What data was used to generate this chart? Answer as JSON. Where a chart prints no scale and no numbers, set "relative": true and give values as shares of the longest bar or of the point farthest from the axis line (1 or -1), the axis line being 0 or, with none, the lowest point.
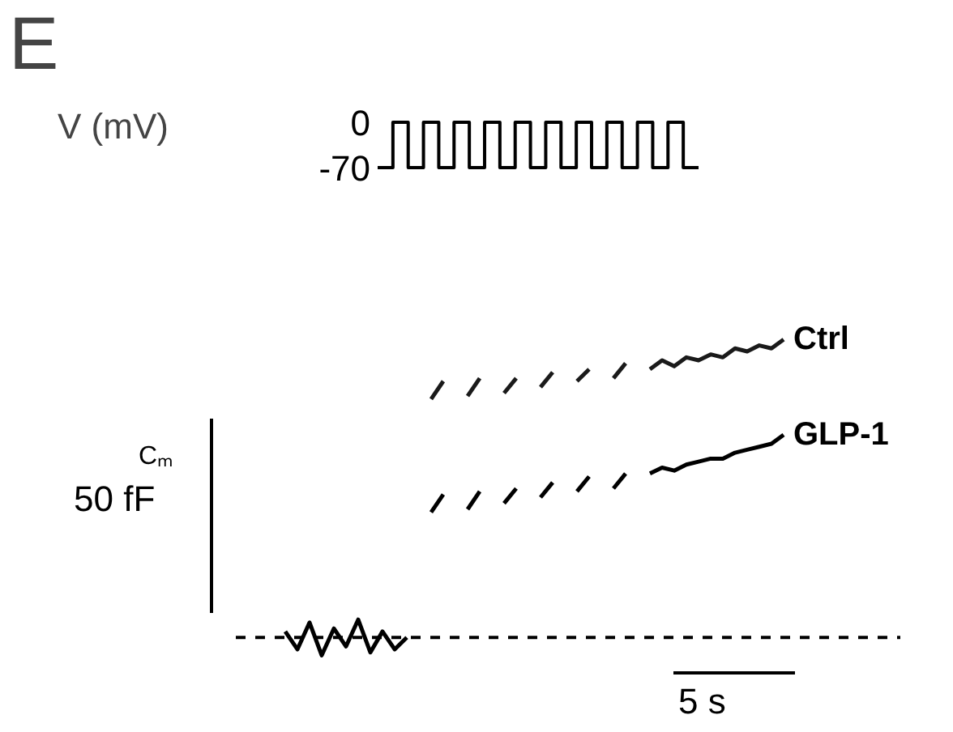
{
  "chart_data": [
    {
      "type": "step",
      "title": "E",
      "ylabel": "V (mV)",
      "ylim": [
        -137.5,
        187.5
      ],
      "yticks": [
        0,
        -70
      ],
      "tick_labels": "y",
      "categories": [
        null,
        null,
        null,
        null,
        null,
        null,
        null,
        null,
        null,
        null,
        null,
        null,
        null,
        null,
        null,
        null,
        null,
        null,
        null,
        null,
        null,
        null
      ],
      "values": [
        -70,
        0,
        -70,
        0,
        -70,
        0,
        -70,
        0,
        -70,
        0,
        -70,
        0,
        -70,
        0,
        -70,
        0,
        -70,
        0,
        -70,
        0,
        -70,
        -70
      ],
      "color": "#000000"
    },
    {
      "type": "line",
      "relative": true,
      "annotations": [
        "Cₘ",
        "50 fF",
        "5 s"
      ],
      "ref_lines": [
        {
          "axis": "y",
          "value": 0,
          "line_style": "dashed",
          "color": "#000000"
        }
      ],
      "categories": [
        null,
        null,
        null,
        null,
        null,
        null,
        null,
        null,
        null,
        null,
        null,
        null,
        null,
        null,
        null,
        null,
        null,
        null,
        null,
        null,
        null,
        null,
        null,
        null,
        null,
        null,
        null,
        null,
        null,
        null,
        null,
        null,
        null,
        null,
        null,
        null,
        null,
        null,
        null,
        null,
        null,
        null
      ],
      "series": [
        {
          "color": "#000000",
          "values": [
            0.02,
            -0.04,
            0.05,
            -0.06,
            0.03,
            -0.03,
            0.06,
            -0.05,
            0.02,
            -0.04,
            0.0,
            null,
            null,
            null,
            null,
            null,
            null,
            null,
            null,
            null,
            null,
            null,
            null,
            null,
            null,
            null,
            null,
            null,
            null,
            null,
            null,
            null,
            null,
            null,
            null,
            null,
            null,
            null,
            null,
            null,
            null,
            null
          ]
        },
        {
          "name": "Ctrl",
          "color": "#1a1a1a",
          "values": [
            null,
            null,
            null,
            null,
            null,
            null,
            null,
            null,
            null,
            null,
            null,
            null,
            0.8,
            0.86,
            null,
            0.81,
            0.87,
            null,
            0.82,
            0.87,
            null,
            0.84,
            0.89,
            null,
            0.86,
            0.9,
            null,
            0.87,
            0.92,
            null,
            0.9,
            0.93,
            0.91,
            0.94,
            0.93,
            0.95,
            0.94,
            0.97,
            0.96,
            0.98,
            0.97,
            1.0
          ]
        },
        {
          "name": "GLP-1",
          "color": "#000000",
          "values": [
            null,
            null,
            null,
            null,
            null,
            null,
            null,
            null,
            null,
            null,
            null,
            null,
            0.42,
            0.48,
            null,
            0.43,
            0.49,
            null,
            0.45,
            0.5,
            null,
            0.47,
            0.52,
            null,
            0.49,
            0.54,
            null,
            0.5,
            0.55,
            null,
            0.55,
            0.57,
            0.56,
            0.58,
            0.59,
            0.6,
            0.6,
            0.62,
            0.63,
            0.64,
            0.65,
            0.68
          ]
        }
      ]
    }
  ]
}
